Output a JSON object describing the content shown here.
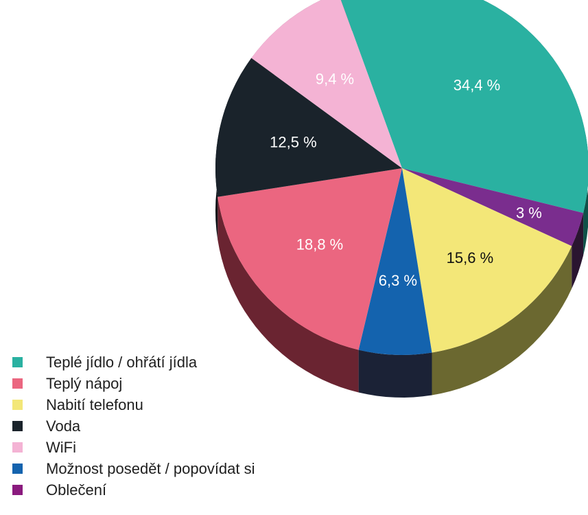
{
  "chart_data": {
    "type": "pie",
    "title": "",
    "slices": [
      {
        "name": "Teplé jídlo / ohřátí jídla",
        "value": 34.4,
        "label": "34,4 %",
        "color": "#2ab1a1",
        "side_color": "#0f5148",
        "label_color": "#ffffff"
      },
      {
        "name": "Oblečení",
        "value": 3,
        "label": "3 %",
        "color": "#7a2d8e",
        "side_color": "#2a1530",
        "label_color": "#ffffff"
      },
      {
        "name": "Nabití telefonu",
        "value": 15.6,
        "label": "15,6 %",
        "color": "#f3e778",
        "side_color": "#6b6830",
        "label_color": "#111111"
      },
      {
        "name": "Možnost posedět / popovídat si",
        "value": 6.3,
        "label": "6,3 %",
        "color": "#1463ae",
        "side_color": "#1b2236",
        "label_color": "#ffffff"
      },
      {
        "name": "Teplý nápoj",
        "value": 18.8,
        "label": "18,8 %",
        "color": "#eb6680",
        "side_color": "#6a2431",
        "label_color": "#ffffff"
      },
      {
        "name": "Voda",
        "value": 12.5,
        "label": "12,5 %",
        "color": "#1a232b",
        "side_color": "#0c1116",
        "label_color": "#ffffff"
      },
      {
        "name": "WiFi",
        "value": 9.4,
        "label": "9,4 %",
        "color": "#f4b3d4",
        "side_color": "#7c5a69",
        "label_color": "#ffffff"
      }
    ]
  },
  "legend": [
    {
      "label": "Teplé jídlo / ohřátí jídla",
      "color": "#2ab1a1"
    },
    {
      "label": "Teplý nápoj",
      "color": "#eb6680"
    },
    {
      "label": "Nabití telefonu",
      "color": "#f3e778"
    },
    {
      "label": "Voda",
      "color": "#1a232b"
    },
    {
      "label": "WiFi",
      "color": "#f4b3d4"
    },
    {
      "label": "Možnost posedět / popovídat si",
      "color": "#1463ae"
    },
    {
      "label": "Oblečení",
      "color": "#8a1a7e"
    }
  ]
}
